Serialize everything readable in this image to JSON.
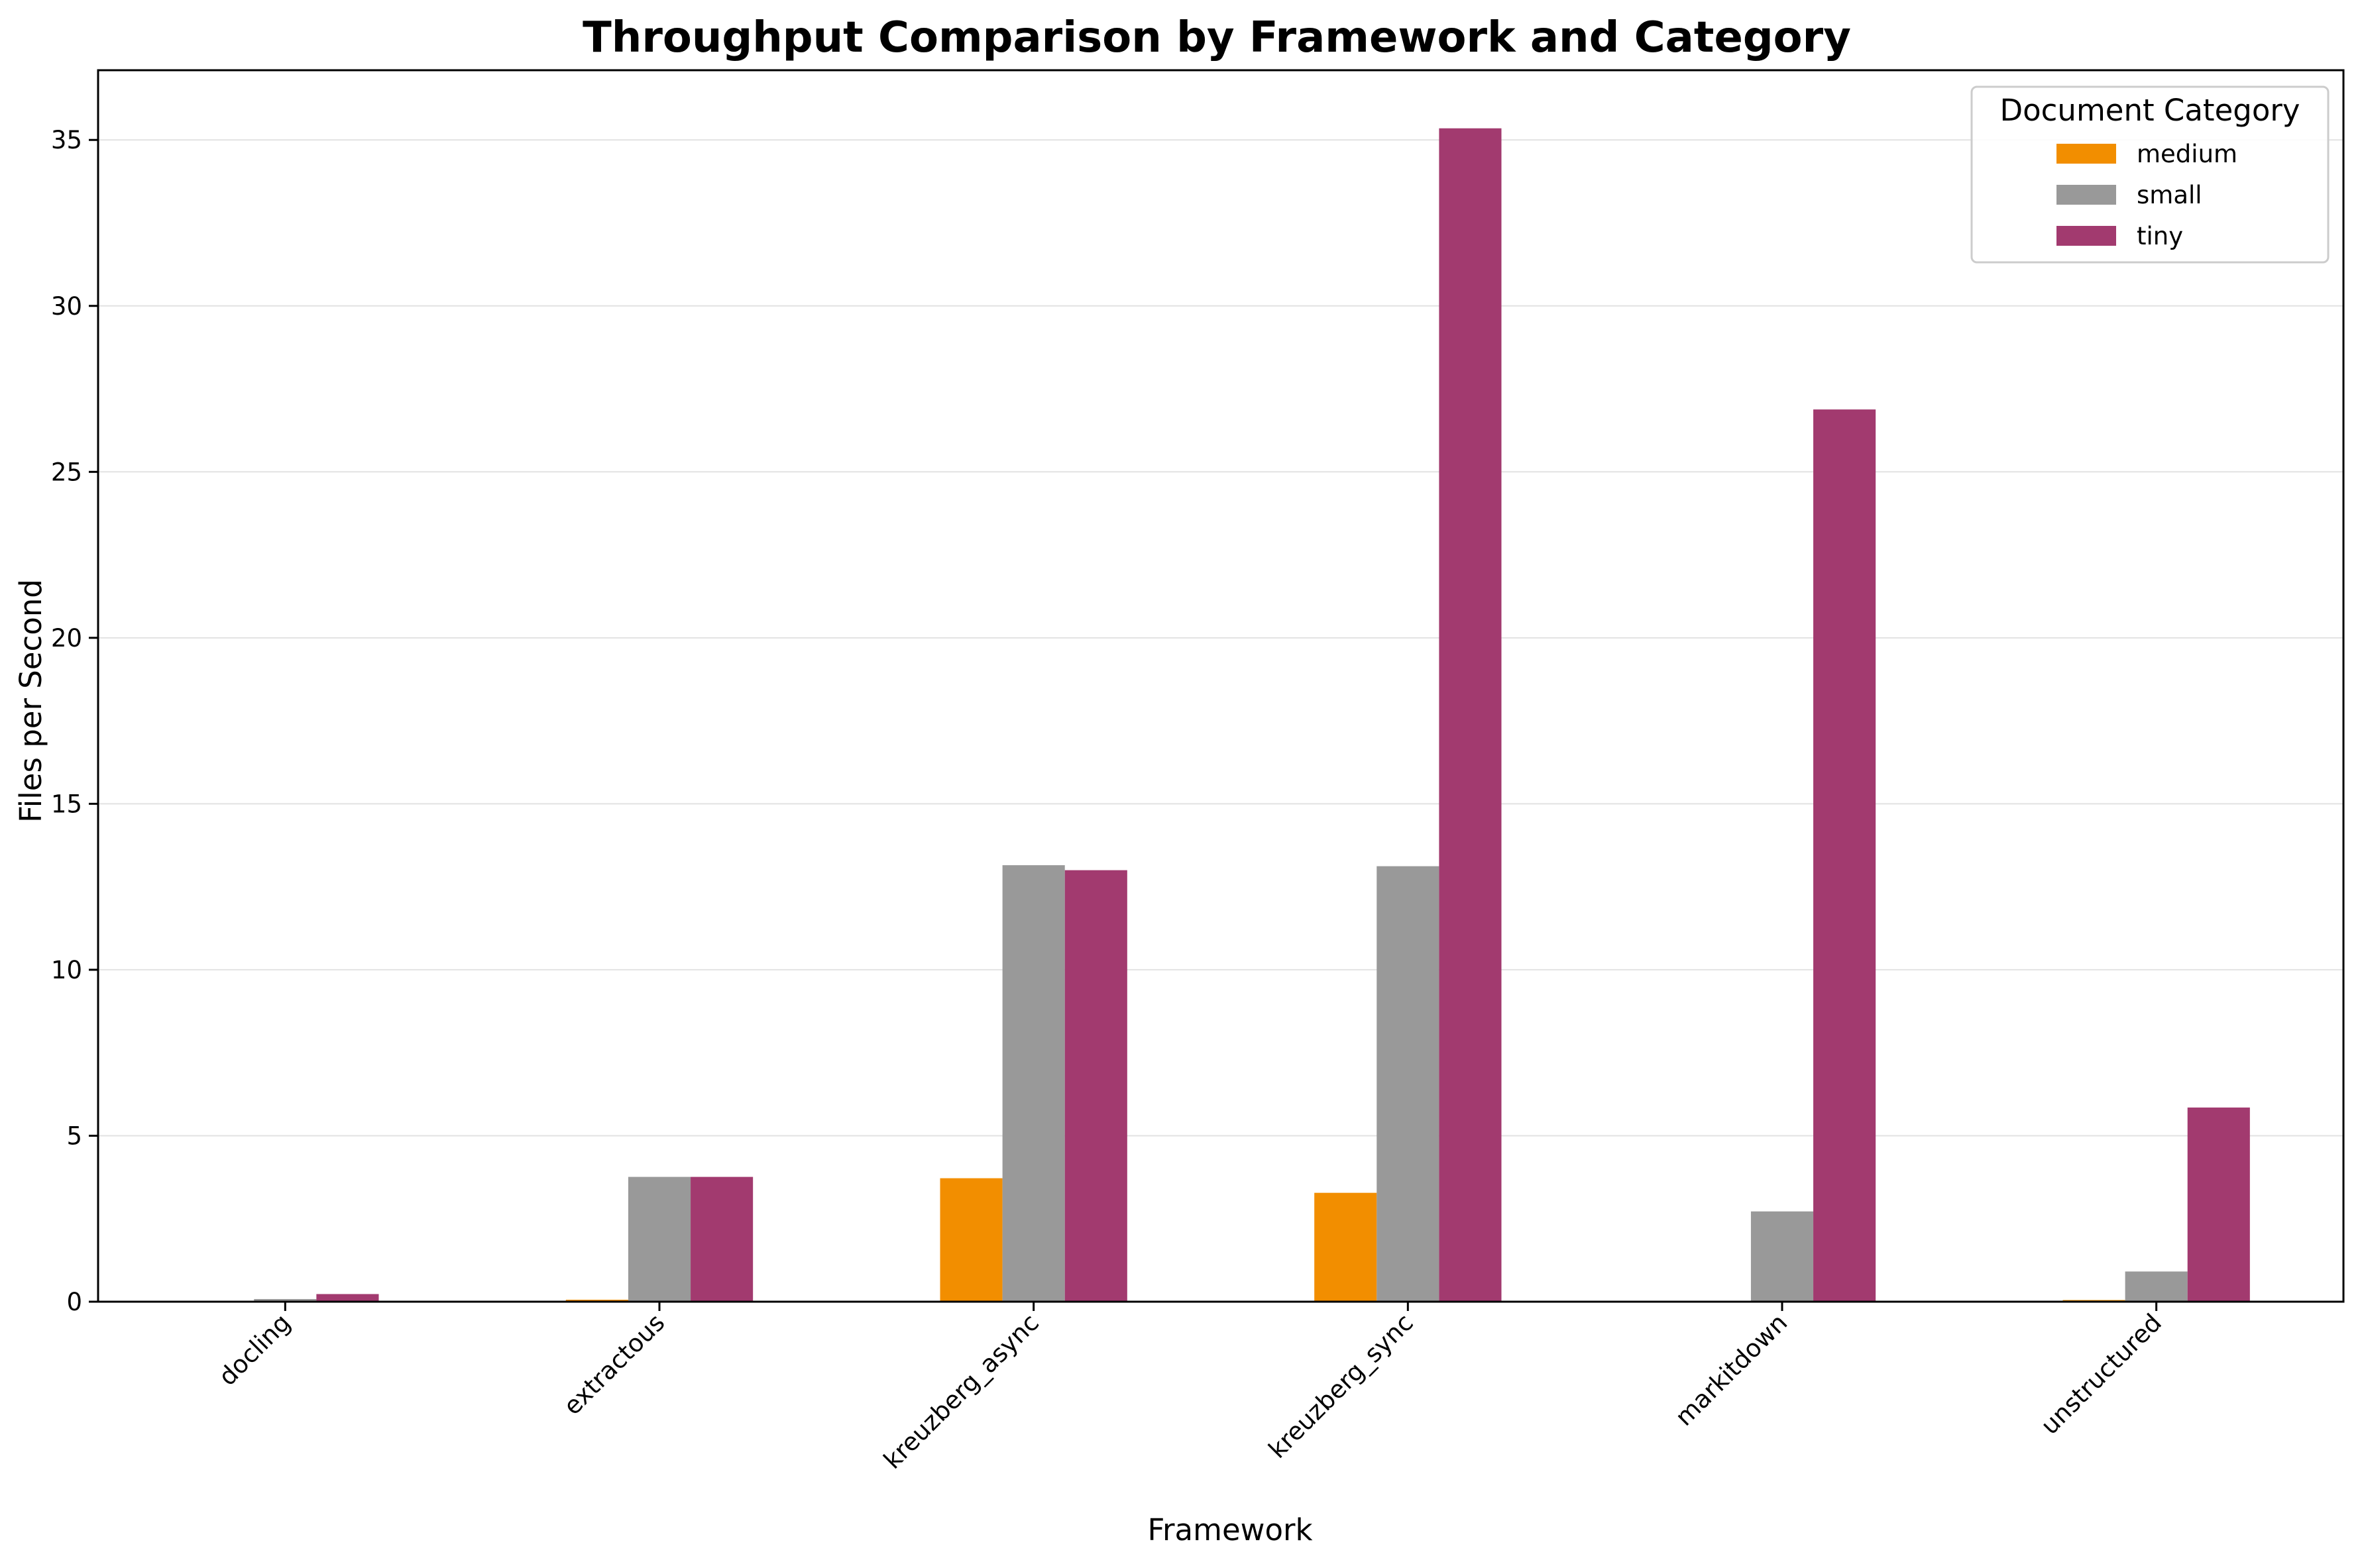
{
  "chart_data": {
    "type": "bar",
    "title": "Throughput Comparison by Framework and Category",
    "xlabel": "Framework",
    "ylabel": "Files per Second",
    "categories": [
      "docling",
      "extractous",
      "kreuzberg_async",
      "kreuzberg_sync",
      "markitdown",
      "unstructured"
    ],
    "series": [
      {
        "name": "medium",
        "color": "#f28e00",
        "values": [
          0.0,
          0.06,
          3.72,
          3.28,
          0.02,
          0.05
        ]
      },
      {
        "name": "small",
        "color": "#999999",
        "values": [
          0.08,
          3.76,
          13.15,
          13.12,
          2.72,
          0.91
        ]
      },
      {
        "name": "tiny",
        "color": "#a23a6f",
        "values": [
          0.23,
          3.76,
          13.0,
          35.35,
          26.88,
          5.85
        ]
      }
    ],
    "ylim": [
      0,
      37.1
    ],
    "yticks": [
      0,
      5,
      10,
      15,
      20,
      25,
      30,
      35
    ],
    "grid": true,
    "legend": {
      "title": "Document Category",
      "placement": "top-right"
    }
  }
}
